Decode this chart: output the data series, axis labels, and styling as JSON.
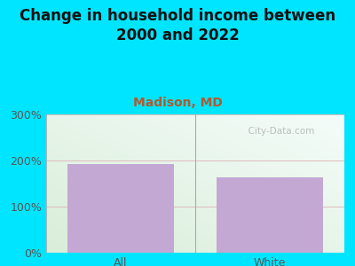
{
  "title": "Change in household income between\n2000 and 2022",
  "subtitle": "Madison, MD",
  "categories": [
    "All",
    "White"
  ],
  "values": [
    193,
    163
  ],
  "bar_color": "#c4a8d4",
  "bar_edgecolor": "none",
  "ylim": [
    0,
    300
  ],
  "yticks": [
    0,
    100,
    200,
    300
  ],
  "ytick_labels": [
    "0%",
    "100%",
    "200%",
    "300%"
  ],
  "title_fontsize": 12,
  "subtitle_fontsize": 10,
  "subtitle_color": "#b05a30",
  "bg_outer_color": "#00e5ff",
  "plot_bg_color_topleft": "#d8edd8",
  "plot_bg_color_botright": "#f0f8f8",
  "grid_color": "#ddbbbb",
  "watermark": "  City-Data.com",
  "tick_fontsize": 9,
  "divider_color": "#aaaaaa",
  "title_color": "#111111"
}
